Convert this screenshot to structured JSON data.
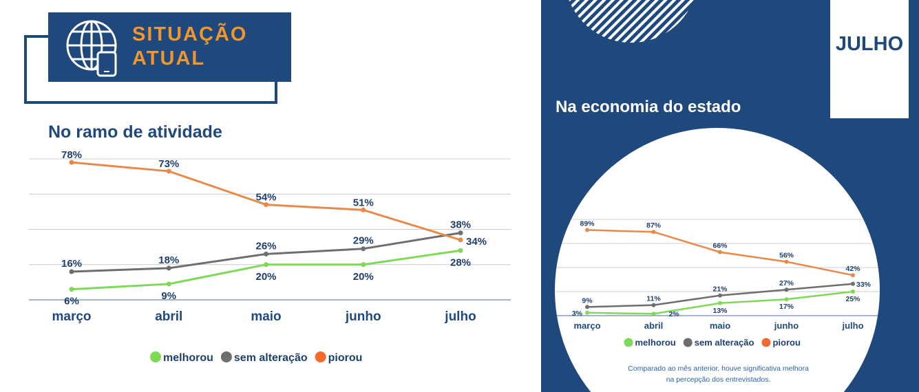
{
  "header": {
    "line1": "SITUAÇÃO",
    "line2": "ATUAL",
    "icon": "globe-phone-icon"
  },
  "colors": {
    "brand": "#1F497D",
    "accent": "#F0962E",
    "melhorou": "#7ED957",
    "sem_alteracao": "#6E6E6E",
    "piorou": "#E8894A"
  },
  "left_title": "No ramo de atividade",
  "right_title": "Na economia do estado",
  "month_badge": "JULHO",
  "note": "Comparado ao mês anterior, houve significativa melhora na percepção dos entrevistados.",
  "chart_data": [
    {
      "type": "line",
      "title": "No ramo de atividade",
      "categories": [
        "março",
        "abril",
        "maio",
        "junho",
        "julho"
      ],
      "ylim": [
        0,
        80
      ],
      "grid": true,
      "legend": "bottom",
      "series": [
        {
          "name": "melhorou",
          "values": [
            6,
            9,
            20,
            20,
            28
          ],
          "labels": [
            "6%",
            "9%",
            "20%",
            "20%",
            "28%"
          ]
        },
        {
          "name": "sem alteração",
          "values": [
            16,
            18,
            26,
            29,
            38
          ],
          "labels": [
            "16%",
            "18%",
            "26%",
            "29%",
            "38%"
          ]
        },
        {
          "name": "piorou",
          "values": [
            78,
            73,
            54,
            51,
            34
          ],
          "labels": [
            "78%",
            "73%",
            "54%",
            "51%",
            "34%"
          ]
        }
      ]
    },
    {
      "type": "line",
      "title": "Na economia do estado",
      "categories": [
        "março",
        "abril",
        "maio",
        "junho",
        "julho"
      ],
      "ylim": [
        0,
        100
      ],
      "grid": true,
      "legend": "bottom",
      "series": [
        {
          "name": "melhorou",
          "values": [
            3,
            2,
            13,
            17,
            25
          ],
          "labels": [
            "3%",
            "2%",
            "13%",
            "17%",
            "25%"
          ]
        },
        {
          "name": "sem alteração",
          "values": [
            9,
            11,
            21,
            27,
            33
          ],
          "labels": [
            "9%",
            "11%",
            "21%",
            "27%",
            "33%"
          ]
        },
        {
          "name": "piorou",
          "values": [
            89,
            87,
            66,
            56,
            42
          ],
          "labels": [
            "89%",
            "87%",
            "66%",
            "56%",
            "42%"
          ]
        }
      ]
    }
  ]
}
